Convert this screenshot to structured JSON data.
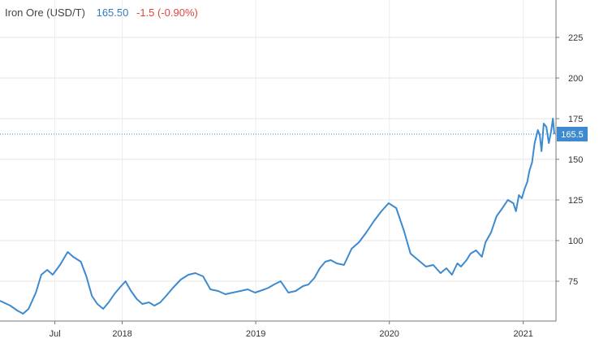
{
  "header": {
    "name": "Iron Ore (USD/T)",
    "price": "165.50",
    "change": "-1.5 (-0.90%)",
    "price_color": "#2f7bbf",
    "change_color": "#e0463c"
  },
  "chart_data": {
    "type": "line",
    "title": "Iron Ore (USD/T)",
    "series": [
      {
        "name": "Iron Ore (USD/T)",
        "color": "#3d8ad0",
        "x": [
          "2017-02-01",
          "2017-03-01",
          "2017-03-20",
          "2017-04-05",
          "2017-04-20",
          "2017-05-10",
          "2017-05-25",
          "2017-06-10",
          "2017-06-25",
          "2017-07-15",
          "2017-08-05",
          "2017-08-20",
          "2017-09-10",
          "2017-09-25",
          "2017-10-10",
          "2017-10-25",
          "2017-11-10",
          "2017-11-25",
          "2017-12-10",
          "2017-12-25",
          "2018-01-10",
          "2018-01-25",
          "2018-02-10",
          "2018-02-25",
          "2018-03-15",
          "2018-03-30",
          "2018-04-15",
          "2018-05-01",
          "2018-05-20",
          "2018-06-10",
          "2018-07-01",
          "2018-07-20",
          "2018-08-10",
          "2018-08-30",
          "2018-09-20",
          "2018-10-10",
          "2018-10-30",
          "2018-11-20",
          "2018-12-10",
          "2018-12-30",
          "2019-01-25",
          "2019-02-05",
          "2019-02-20",
          "2019-03-10",
          "2019-03-31",
          "2019-04-20",
          "2019-05-10",
          "2019-05-25",
          "2019-06-10",
          "2019-06-25",
          "2019-07-10",
          "2019-07-25",
          "2019-08-10",
          "2019-08-30",
          "2019-09-20",
          "2019-10-10",
          "2019-10-30",
          "2019-11-20",
          "2019-12-10",
          "2019-12-30",
          "2020-01-20",
          "2020-02-10",
          "2020-02-28",
          "2020-03-20",
          "2020-04-10",
          "2020-04-30",
          "2020-05-20",
          "2020-06-05",
          "2020-06-20",
          "2020-07-05",
          "2020-07-15",
          "2020-07-30",
          "2020-08-10",
          "2020-08-25",
          "2020-09-10",
          "2020-09-20",
          "2020-10-05",
          "2020-10-20",
          "2020-11-05",
          "2020-11-20",
          "2020-12-05",
          "2020-12-12",
          "2020-12-20",
          "2020-12-28",
          "2021-01-05",
          "2021-01-12",
          "2021-01-18",
          "2021-01-25",
          "2021-02-01",
          "2021-02-10",
          "2021-02-15",
          "2021-02-20",
          "2021-02-26",
          "2021-03-05",
          "2021-03-12",
          "2021-03-18",
          "2021-03-23",
          "2021-03-27"
        ],
        "y": [
          63,
          60,
          57,
          55,
          58,
          68,
          79,
          82,
          79,
          85,
          93,
          90,
          87,
          78,
          66,
          61,
          58,
          62,
          67,
          71,
          75,
          69,
          64,
          61,
          62,
          60,
          62,
          66,
          71,
          76,
          79,
          80,
          78,
          70,
          69,
          67,
          68,
          69,
          70,
          68,
          70,
          71,
          73,
          75,
          68,
          69,
          72,
          73,
          77,
          83,
          87,
          88,
          86,
          85,
          95,
          99,
          105,
          112,
          118,
          123,
          120,
          106,
          92,
          88,
          84,
          85,
          80,
          83,
          79,
          86,
          84,
          88,
          92,
          94,
          90,
          99,
          105,
          115,
          120,
          125,
          123,
          118,
          128,
          126,
          132,
          136,
          143,
          148,
          160,
          168,
          165,
          155,
          172,
          170,
          160,
          167,
          175,
          165.5
        ]
      }
    ],
    "x_ticks": [
      "Jul",
      "2018",
      "2019",
      "2020",
      "2021"
    ],
    "y_ticks": [
      75,
      100,
      125,
      150,
      175,
      200,
      225
    ],
    "ylim": [
      50,
      250
    ],
    "current_value_label": "165.5",
    "grid": true,
    "axis_position": "right"
  }
}
